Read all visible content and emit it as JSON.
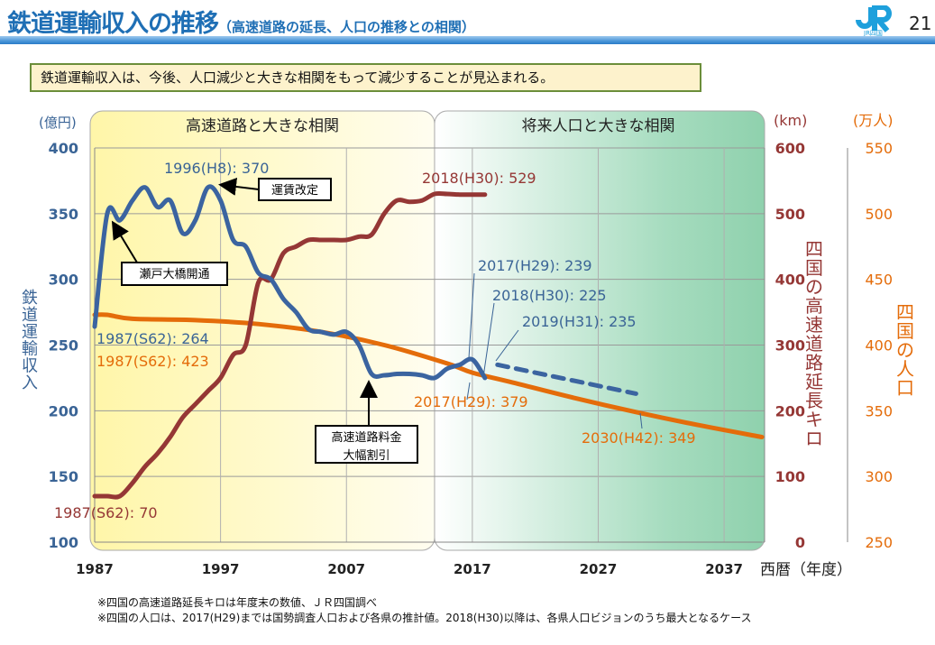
{
  "header": {
    "title": "鉄道運輸収入の推移",
    "subtitle": "（高速道路の延長、人口の推移との相関）",
    "page_number": "21",
    "logo_text": "JR四国"
  },
  "message": "鉄道運輸収入は、今後、人口減少と大きな相関をもって減少することが見込まれる。",
  "notes": [
    "※四国の高速道路延長キロは年度末の数値、ＪＲ四国調べ",
    "※四国の人口は、2017(H29)までは国勢調査人口および各県の推計値。2018(H30)以降は、各県人口ビジョンのうち最大となるケース"
  ],
  "chart_data": {
    "type": "line",
    "xlabel": "西暦（年度）",
    "xlim": [
      1987,
      2040
    ],
    "xticks": [
      1987,
      1997,
      2007,
      2017,
      2027,
      2037
    ],
    "grid": true,
    "colors": {
      "revenue": "#3b64a0",
      "highway": "#953735",
      "population": "#e46c0a"
    },
    "bands": [
      {
        "label": "高速道路と大きな相関",
        "from": 1987,
        "to": 2014,
        "color": "#fff7b0"
      },
      {
        "label": "将来人口と大きな相関",
        "from": 2014,
        "to": 2040,
        "color": "#96d4b0"
      }
    ],
    "axes": {
      "left": {
        "unit": "(億円)",
        "label": "鉄道運輸収入",
        "ylim": [
          100,
          400
        ],
        "ticks": [
          100,
          150,
          200,
          250,
          300,
          350,
          400
        ]
      },
      "right1": {
        "unit": "(km)",
        "label": "四国の高速道路延長キロ",
        "ylim": [
          0,
          600
        ],
        "ticks": [
          0,
          100,
          200,
          300,
          400,
          500,
          600
        ]
      },
      "right2": {
        "unit": "(万人)",
        "label": "四国の人口",
        "ylim": [
          250,
          550
        ],
        "ticks": [
          250,
          300,
          350,
          400,
          450,
          500,
          550
        ]
      }
    },
    "series": [
      {
        "key": "revenue",
        "axis": "left",
        "x": [
          1987,
          1988,
          1989,
          1990,
          1991,
          1992,
          1993,
          1994,
          1995,
          1996,
          1997,
          1998,
          1999,
          2000,
          2001,
          2002,
          2003,
          2004,
          2005,
          2006,
          2007,
          2008,
          2009,
          2010,
          2011,
          2012,
          2013,
          2014,
          2015,
          2016,
          2017,
          2018
        ],
        "y": [
          264,
          350,
          345,
          360,
          370,
          355,
          360,
          335,
          345,
          370,
          360,
          330,
          325,
          305,
          300,
          285,
          275,
          262,
          260,
          258,
          260,
          250,
          228,
          227,
          228,
          228,
          227,
          225,
          232,
          235,
          239,
          225
        ]
      },
      {
        "key": "revenue_projection",
        "axis": "left",
        "dashed": true,
        "x": [
          2019,
          2030
        ],
        "y": [
          235,
          213
        ]
      },
      {
        "key": "highway",
        "axis": "right1",
        "x": [
          1987,
          1988,
          1989,
          1990,
          1991,
          1992,
          1993,
          1994,
          1995,
          1996,
          1997,
          1998,
          1999,
          2000,
          2001,
          2002,
          2003,
          2004,
          2005,
          2006,
          2007,
          2008,
          2009,
          2010,
          2011,
          2012,
          2013,
          2014,
          2015,
          2016,
          2017,
          2018
        ],
        "y": [
          70,
          70,
          70,
          90,
          115,
          135,
          160,
          190,
          210,
          230,
          250,
          285,
          300,
          395,
          400,
          440,
          450,
          460,
          460,
          460,
          460,
          465,
          468,
          500,
          520,
          518,
          520,
          530,
          530,
          529,
          529,
          529
        ]
      },
      {
        "key": "population",
        "axis": "right2",
        "x": [
          1987,
          1988,
          1990,
          1995,
          2000,
          2005,
          2010,
          2015,
          2017,
          2020,
          2025,
          2030,
          2035,
          2040
        ],
        "y": [
          423,
          423,
          420,
          419,
          416,
          410,
          400,
          386,
          379,
          372,
          360,
          349,
          339,
          330
        ]
      }
    ],
    "data_labels": [
      {
        "text": "1996(H8): 370",
        "series": "revenue"
      },
      {
        "text": "1987(S62): 264",
        "series": "revenue"
      },
      {
        "text": "1987(S62): 423",
        "series": "population"
      },
      {
        "text": "1987(S62): 70",
        "series": "highway"
      },
      {
        "text": "2018(H30): 529",
        "series": "highway"
      },
      {
        "text": "2017(H29): 239",
        "series": "revenue"
      },
      {
        "text": "2018(H30): 225",
        "series": "revenue"
      },
      {
        "text": "2019(H31): 235",
        "series": "revenue_projection"
      },
      {
        "text": "2017(H29): 379",
        "series": "population"
      },
      {
        "text": "2030(H42): 349",
        "series": "population"
      }
    ],
    "annotations": [
      "運賃改定",
      "瀬戸大橋開通",
      "高速道路料金",
      "大幅割引"
    ]
  }
}
